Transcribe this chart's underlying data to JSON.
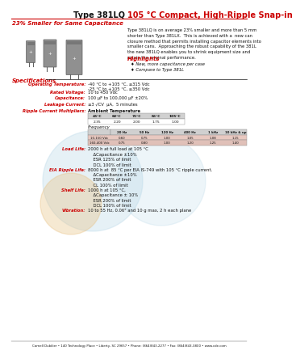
{
  "title_black": "Type 381LQ ",
  "title_red": "105 °C Compact, High-Ripple Snap-in",
  "subtitle": "23% Smaller for Same Capacitance",
  "body_text": "Type 381LQ is on average 23% smaller and more than 5 mm\nshorter than Type 381LX.  This is achieved with a  new can\nclosure method that permits installing capacitor elements into\nsmaller cans.  Approaching the robust capability of the 381L\nthe new 381LQ enables you to shrink equipment size and\nretain the original performance.",
  "highlights_title": "Highlights",
  "highlights": [
    "♦ New, more capacitance per case",
    "♦ Compare to Type 381L"
  ],
  "specs_title": "Specifications",
  "spec_labels": [
    "Operating Temperature:",
    "Rated Voltage:",
    "Capacitance:",
    "Leakage Current:",
    "Ripple Current Multipliers:"
  ],
  "spec_values": [
    "-40 °C to +105 °C, ≤315 Vdc\n-25 °C to +105 °C, ≥350 Vdc",
    "10 to 450 Vdc",
    "100 μF to 100,000 μF ±20%",
    "≤3 √CV  μA,  5 minutes",
    "Ambient Temperature"
  ],
  "ambient_headers": [
    "45°C",
    "60°C",
    "75°C",
    "85°C",
    "105°C"
  ],
  "ambient_values": [
    "2.35",
    "2.20",
    "2.00",
    "1.75",
    "1.00"
  ],
  "freq_label": "Frequency",
  "freq_headers": [
    "20 Hz",
    "50 Hz",
    "120 Hz",
    "400 Hz",
    "1 kHz",
    "10 kHz & up"
  ],
  "freq_row1_label": "10-150 Vdc",
  "freq_row1": [
    "0.60",
    "0.75",
    "1.00",
    "1.05",
    "1.08",
    "1.15"
  ],
  "freq_row2_label": "160-400 Vdc",
  "freq_row2": [
    "0.75",
    "0.80",
    "1.00",
    "1.20",
    "1.25",
    "1.40"
  ],
  "load_life_label": "Load Life:",
  "load_life": "2000 h at full load at 105 °C\n    ΔCapacitance ±10%\n    ESR 125% of limit\n    DCL 100% of limit",
  "eia_label": "EIA Ripple Life:",
  "eia": "8000 h at  85 °C per EIA IS-749 with 105 °C ripple current.\n    ΔCapacitance ±10%\n    ESR 200% of limit\n    CL 100% of limit",
  "shelf_label": "Shelf Life:",
  "shelf": "1000 h at 105 °C,\n    ΔCapacitance ± 10%\n    ESR 200% of limit\n    DCL 100% of limit",
  "vibration_label": "Vibration:",
  "vibration": "10 to 55 Hz, 0.06\" and 10 g max, 2 h each plane",
  "footer": "Cornell Dubilier • 140 Technology Place • Liberty, SC 29657 • Phone: (864)843-2277 • Fax: (864)843-3800 • www.cde.com",
  "red": "#cc0000",
  "black": "#111111",
  "dark_gray": "#555555",
  "table_header_bg": "#d0d0d0",
  "table_row1_bg": "#e8d0c8",
  "table_row2_bg": "#e8d0c8",
  "logo_blue": "#b8d8e8",
  "logo_orange": "#e8c080",
  "cap_body": "#909090",
  "cap_dark": "#606060"
}
